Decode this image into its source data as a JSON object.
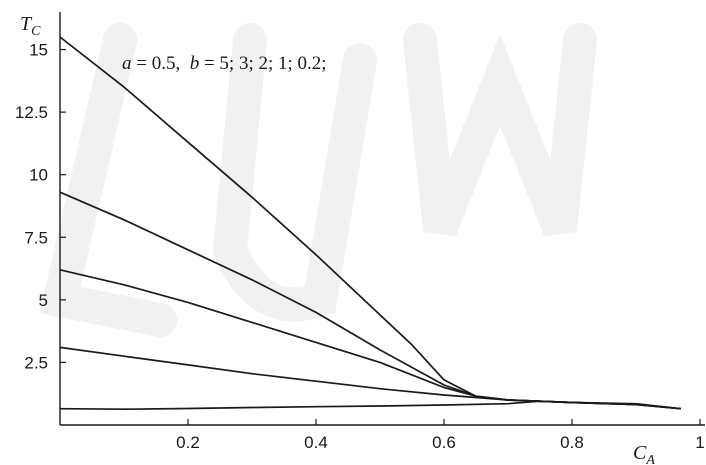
{
  "chart_data": {
    "type": "line",
    "xlabel": {
      "main": "C",
      "sub": "A"
    },
    "ylabel": {
      "main": "T",
      "sub": "C"
    },
    "xlim": [
      0,
      1.0
    ],
    "ylim": [
      0,
      16.5
    ],
    "x_ticks": [
      0.2,
      0.4,
      0.6,
      0.8,
      1
    ],
    "x_tick_labels": [
      "0.2",
      "0.4",
      "0.6",
      "0.8",
      "1"
    ],
    "y_ticks": [
      2.5,
      5,
      7.5,
      10,
      12.5,
      15
    ],
    "y_tick_labels": [
      "2.5",
      "5",
      "7.5",
      "10",
      "12.5",
      "15"
    ],
    "annotation": {
      "a_symbol": "a",
      "a_value": " = 0.5,  ",
      "b_symbol": "b",
      "b_value": " = 5; 3; 2; 1; 0.2;"
    },
    "grid": false,
    "series": [
      {
        "x": [
          0,
          0.1,
          0.2,
          0.3,
          0.4,
          0.5,
          0.55,
          0.6,
          0.65,
          0.7,
          0.8,
          0.9,
          0.97
        ],
        "y": [
          15.5,
          13.5,
          11.3,
          9.1,
          6.8,
          4.4,
          3.2,
          1.8,
          1.15,
          1.0,
          0.9,
          0.82,
          0.65
        ]
      },
      {
        "x": [
          0,
          0.1,
          0.2,
          0.3,
          0.4,
          0.5,
          0.6,
          0.65,
          0.7,
          0.8,
          0.9,
          0.97
        ],
        "y": [
          9.3,
          8.2,
          7.0,
          5.8,
          4.5,
          3.0,
          1.6,
          1.15,
          1.0,
          0.9,
          0.82,
          0.65
        ]
      },
      {
        "x": [
          0,
          0.1,
          0.2,
          0.3,
          0.4,
          0.5,
          0.6,
          0.65,
          0.7,
          0.8,
          0.9,
          0.97
        ],
        "y": [
          6.2,
          5.6,
          4.9,
          4.1,
          3.3,
          2.5,
          1.5,
          1.15,
          1.0,
          0.9,
          0.82,
          0.65
        ]
      },
      {
        "x": [
          0,
          0.1,
          0.2,
          0.3,
          0.4,
          0.5,
          0.6,
          0.7,
          0.8,
          0.9,
          0.97
        ],
        "y": [
          3.1,
          2.75,
          2.4,
          2.05,
          1.75,
          1.45,
          1.2,
          1.0,
          0.9,
          0.82,
          0.65
        ]
      },
      {
        "x": [
          0,
          0.1,
          0.2,
          0.3,
          0.4,
          0.5,
          0.6,
          0.7,
          0.75,
          0.8,
          0.9,
          0.97
        ],
        "y": [
          0.65,
          0.63,
          0.66,
          0.7,
          0.73,
          0.76,
          0.8,
          0.85,
          0.95,
          0.9,
          0.85,
          0.65
        ]
      }
    ]
  }
}
